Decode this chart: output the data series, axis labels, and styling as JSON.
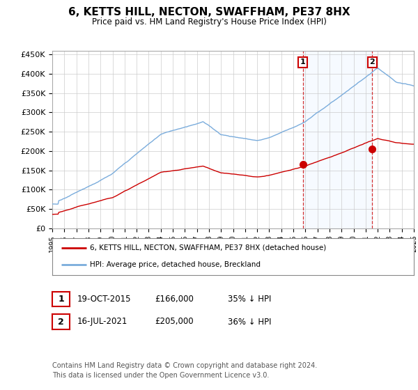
{
  "title": "6, KETTS HILL, NECTON, SWAFFHAM, PE37 8HX",
  "subtitle": "Price paid vs. HM Land Registry's House Price Index (HPI)",
  "ylabel_ticks": [
    "£0",
    "£50K",
    "£100K",
    "£150K",
    "£200K",
    "£250K",
    "£300K",
    "£350K",
    "£400K",
    "£450K"
  ],
  "ytick_values": [
    0,
    50000,
    100000,
    150000,
    200000,
    250000,
    300000,
    350000,
    400000,
    450000
  ],
  "ylim": [
    0,
    460000
  ],
  "background_color": "#ffffff",
  "plot_bg_color": "#ffffff",
  "grid_color": "#cccccc",
  "hpi_color": "#7aacdc",
  "hpi_fill_color": "#ddeeff",
  "price_color": "#cc0000",
  "sale1_x": 2015.8,
  "sale1_y": 166000,
  "sale2_x": 2021.55,
  "sale2_y": 205000,
  "legend_price_label": "6, KETTS HILL, NECTON, SWAFFHAM, PE37 8HX (detached house)",
  "legend_hpi_label": "HPI: Average price, detached house, Breckland",
  "table_row1": [
    "1",
    "19-OCT-2015",
    "£166,000",
    "35% ↓ HPI"
  ],
  "table_row2": [
    "2",
    "16-JUL-2021",
    "£205,000",
    "36% ↓ HPI"
  ],
  "footnote": "Contains HM Land Registry data © Crown copyright and database right 2024.\nThis data is licensed under the Open Government Licence v3.0.",
  "xmin": 1995,
  "xmax": 2025
}
